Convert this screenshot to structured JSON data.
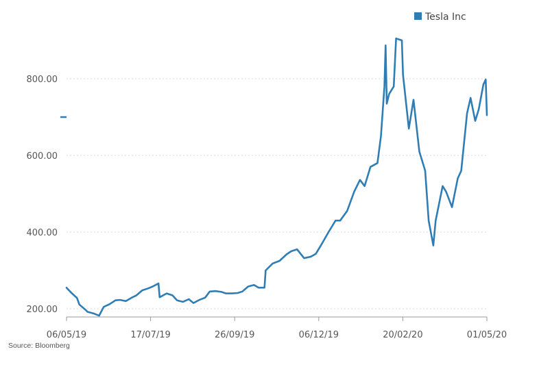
{
  "chart_data": {
    "type": "line",
    "title": "",
    "xlabel": "",
    "ylabel": "",
    "ylim": [
      185,
      920
    ],
    "y_ticks": [
      {
        "value": 200,
        "label": "200.00"
      },
      {
        "value": 400,
        "label": "400.00"
      },
      {
        "value": 600,
        "label": "600.00"
      },
      {
        "value": 800,
        "label": "800.00"
      }
    ],
    "x_ticks": [
      "06/05/19",
      "17/07/19",
      "26/09/19",
      "06/12/19",
      "20/02/20",
      "01/05/20"
    ],
    "x_range": [
      "2019-05-06",
      "2020-05-01"
    ],
    "grid": "horizontal dotted",
    "legend_position": "top-right",
    "series": [
      {
        "name": "Tesla Inc",
        "color": "#2e7db5",
        "dates": [
          "2019-05-06",
          "2019-05-10",
          "2019-05-15",
          "2019-05-17",
          "2019-05-22",
          "2019-05-24",
          "2019-05-29",
          "2019-06-03",
          "2019-06-07",
          "2019-06-12",
          "2019-06-17",
          "2019-06-21",
          "2019-06-26",
          "2019-07-01",
          "2019-07-05",
          "2019-07-10",
          "2019-07-15",
          "2019-07-19",
          "2019-07-24",
          "2019-07-25",
          "2019-07-31",
          "2019-08-05",
          "2019-08-09",
          "2019-08-14",
          "2019-08-19",
          "2019-08-23",
          "2019-08-28",
          "2019-09-02",
          "2019-09-06",
          "2019-09-11",
          "2019-09-16",
          "2019-09-20",
          "2019-09-25",
          "2019-09-30",
          "2019-10-04",
          "2019-10-09",
          "2019-10-14",
          "2019-10-18",
          "2019-10-23",
          "2019-10-24",
          "2019-10-30",
          "2019-11-05",
          "2019-11-11",
          "2019-11-15",
          "2019-11-20",
          "2019-11-26",
          "2019-12-02",
          "2019-12-06",
          "2019-12-11",
          "2019-12-17",
          "2019-12-23",
          "2019-12-27",
          "2020-01-02",
          "2020-01-08",
          "2020-01-13",
          "2020-01-17",
          "2020-01-22",
          "2020-01-28",
          "2020-01-31",
          "2020-02-03",
          "2020-02-04",
          "2020-02-05",
          "2020-02-07",
          "2020-02-11",
          "2020-02-13",
          "2020-02-18",
          "2020-02-19",
          "2020-02-24",
          "2020-02-28",
          "2020-03-04",
          "2020-03-09",
          "2020-03-12",
          "2020-03-16",
          "2020-03-18",
          "2020-03-20",
          "2020-03-24",
          "2020-03-27",
          "2020-04-01",
          "2020-04-06",
          "2020-04-09",
          "2020-04-14",
          "2020-04-17",
          "2020-04-21",
          "2020-04-24",
          "2020-04-28",
          "2020-04-30",
          "2020-05-01"
        ],
        "values": [
          255,
          242,
          228,
          211,
          198,
          192,
          188,
          182,
          205,
          212,
          222,
          223,
          220,
          229,
          235,
          248,
          253,
          258,
          266,
          230,
          240,
          235,
          222,
          218,
          225,
          215,
          223,
          229,
          245,
          246,
          244,
          240,
          240,
          241,
          245,
          258,
          262,
          255,
          255,
          300,
          318,
          325,
          342,
          350,
          355,
          332,
          336,
          343,
          368,
          400,
          430,
          430,
          455,
          505,
          536,
          520,
          570,
          580,
          650,
          780,
          887,
          735,
          760,
          780,
          905,
          900,
          810,
          670,
          745,
          610,
          560,
          430,
          365,
          430,
          460,
          520,
          505,
          465,
          540,
          560,
          710,
          750,
          690,
          720,
          785,
          798,
          705
        ]
      }
    ]
  },
  "source": "Source: Bloomberg"
}
